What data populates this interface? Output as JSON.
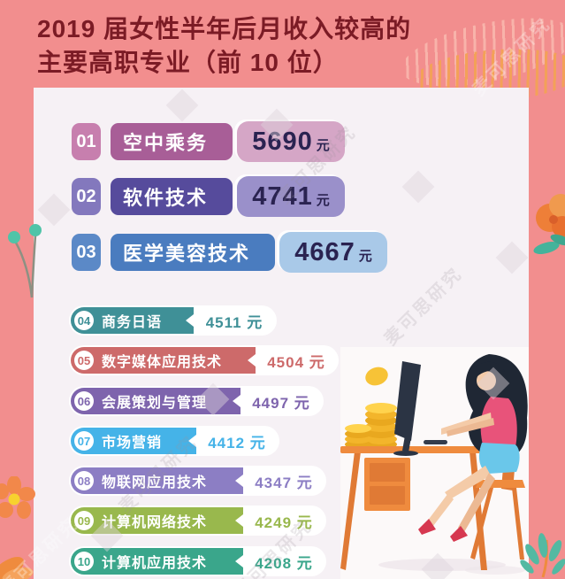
{
  "page": {
    "background": "#f28e8e",
    "card_bg": "#f6f1f5"
  },
  "title": {
    "line1": "2019 届女性半年后月收入较高的",
    "line2": "主要高职专业（前 10 位）",
    "color": "#7b1b25"
  },
  "watermark": {
    "text": "麦可思研究"
  },
  "unit": "元",
  "value_text_color": "#2a2351",
  "rows_top": [
    {
      "rank": "01",
      "label": "空中乘务",
      "value": "5690",
      "badge_color": "#c77fae",
      "bar_color": "#a85e97",
      "pill_color": "#d5a6c6"
    },
    {
      "rank": "02",
      "label": "软件技术",
      "value": "4741",
      "badge_color": "#8378bd",
      "bar_color": "#564b9c",
      "pill_color": "#9a90ca"
    },
    {
      "rank": "03",
      "label": "医学美容技术",
      "value": "4667",
      "badge_color": "#5b89c7",
      "bar_color": "#4a7cbf",
      "pill_color": "#a9c9e8"
    }
  ],
  "rows_list": [
    {
      "rank": "04",
      "label": "商务日语",
      "value": "4511",
      "color": "#3f9097"
    },
    {
      "rank": "05",
      "label": "数字媒体应用技术",
      "value": "4504",
      "color": "#cd6a6a"
    },
    {
      "rank": "06",
      "label": "会展策划与管理",
      "value": "4497",
      "color": "#7e64ad"
    },
    {
      "rank": "07",
      "label": "市场营销",
      "value": "4412",
      "color": "#45b3e8"
    },
    {
      "rank": "08",
      "label": "物联网应用技术",
      "value": "4347",
      "color": "#8c7ec4"
    },
    {
      "rank": "09",
      "label": "计算机网络技术",
      "value": "4249",
      "color": "#99b84d"
    },
    {
      "rank": "10",
      "label": "计算机应用技术",
      "value": "4208",
      "color": "#3aa68b"
    }
  ],
  "chart_data": {
    "type": "bar",
    "orientation": "horizontal",
    "title": "2019届女性半年后月收入较高的主要高职专业（前10位）",
    "categories": [
      "空中乘务",
      "软件技术",
      "医学美容技术",
      "商务日语",
      "数字媒体应用技术",
      "会展策划与管理",
      "市场营销",
      "物联网应用技术",
      "计算机网络技术",
      "计算机应用技术"
    ],
    "values": [
      5690,
      4741,
      4667,
      4511,
      4504,
      4497,
      4412,
      4347,
      4249,
      4208
    ],
    "ranks": [
      "01",
      "02",
      "03",
      "04",
      "05",
      "06",
      "07",
      "08",
      "09",
      "10"
    ],
    "unit": "元",
    "value_labels_shown": true,
    "legend": "none",
    "grid": false
  }
}
